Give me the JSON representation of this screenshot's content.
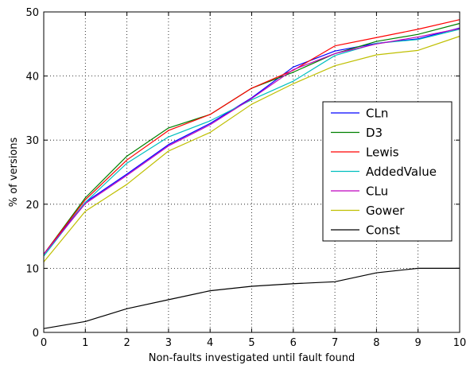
{
  "chart_data": {
    "type": "line",
    "title": "",
    "xlabel": "Non-faults investigated until fault found",
    "ylabel": "% of versions",
    "xlim": [
      0,
      10
    ],
    "ylim": [
      0,
      50
    ],
    "x": [
      0,
      1,
      2,
      3,
      4,
      5,
      6,
      7,
      8,
      9,
      10
    ],
    "xticks": [
      "0",
      "1",
      "2",
      "3",
      "4",
      "5",
      "6",
      "7",
      "8",
      "9",
      "10"
    ],
    "yticks": [
      "0",
      "10",
      "20",
      "30",
      "40",
      "50"
    ],
    "grid": true,
    "legend_position": "center-right",
    "series": [
      {
        "name": "CLn",
        "color": "#0000ff",
        "values": [
          12.2,
          20.3,
          24.7,
          29.3,
          32.6,
          36.6,
          41.4,
          43.9,
          45.1,
          45.8,
          47.5
        ]
      },
      {
        "name": "D3",
        "color": "#008000",
        "values": [
          12.2,
          21.0,
          27.5,
          31.9,
          34.0,
          38.1,
          40.6,
          43.5,
          45.4,
          46.5,
          48.2
        ]
      },
      {
        "name": "Lewis",
        "color": "#ff0000",
        "values": [
          12.2,
          20.7,
          26.9,
          31.5,
          34.0,
          38.1,
          40.9,
          44.7,
          46.0,
          47.3,
          48.8
        ]
      },
      {
        "name": "AddedValue",
        "color": "#00bfbf",
        "values": [
          11.9,
          20.3,
          26.4,
          30.5,
          33.0,
          36.3,
          39.2,
          43.2,
          45.1,
          45.7,
          47.3
        ]
      },
      {
        "name": "CLu",
        "color": "#bf00bf",
        "values": [
          12.2,
          20.1,
          24.5,
          29.1,
          32.4,
          36.5,
          41.0,
          43.5,
          45.0,
          46.1,
          47.4
        ]
      },
      {
        "name": "Gower",
        "color": "#bfbf00",
        "values": [
          11.0,
          18.9,
          23.1,
          28.3,
          31.2,
          35.6,
          38.8,
          41.6,
          43.3,
          44.0,
          46.2
        ]
      },
      {
        "name": "Const",
        "color": "#000000",
        "values": [
          0.6,
          1.7,
          3.7,
          5.1,
          6.5,
          7.2,
          7.6,
          7.9,
          9.3,
          10.0,
          10.0
        ]
      }
    ]
  }
}
